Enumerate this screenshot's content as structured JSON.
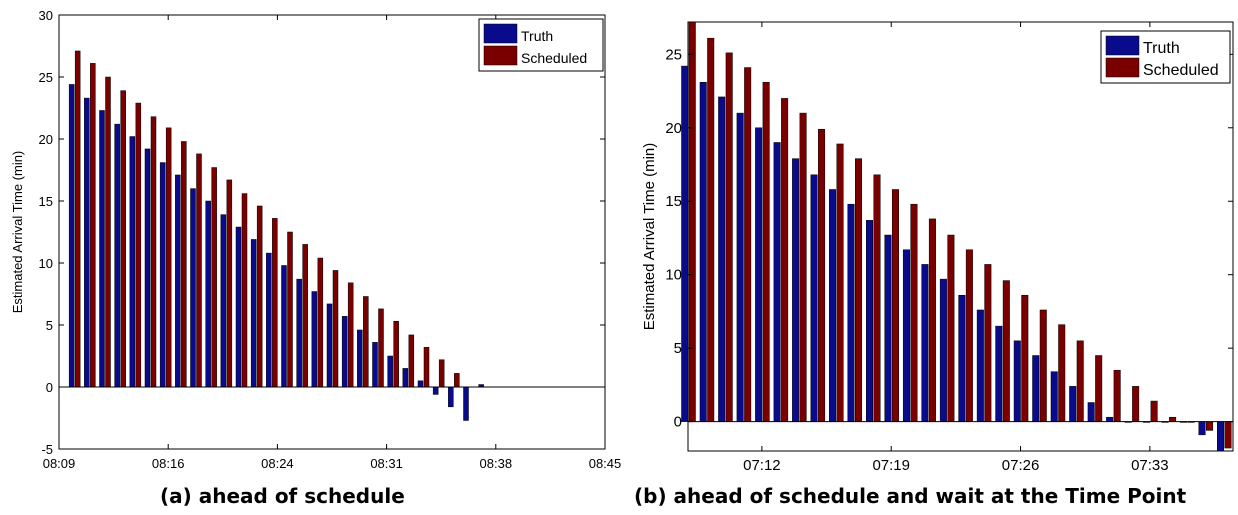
{
  "figure": {
    "captions": {
      "a": "(a) ahead of schedule",
      "b": "(b) ahead of schedule and wait at the Time Point"
    },
    "colors": {
      "truth": "#0a0a8c",
      "scheduled": "#7a0000"
    }
  },
  "chart_data": [
    {
      "type": "bar",
      "ylabel": "Estimated Arrival Time (min)",
      "xlabel": "",
      "ylim": [
        -5,
        30
      ],
      "yticks": [
        "-5",
        "0",
        "5",
        "10",
        "15",
        "20",
        "25",
        "30"
      ],
      "xticks": [
        "08:09",
        "08:16",
        "08:24",
        "08:31",
        "08:38",
        "08:45"
      ],
      "xlim_minutes": [
        9,
        45
      ],
      "legend": {
        "position": "top-right",
        "entries": [
          "Truth",
          "Scheduled"
        ]
      },
      "grid": false,
      "x_minutes": [
        10,
        11,
        12,
        13,
        14,
        15,
        16,
        17,
        18,
        19,
        20,
        21,
        22,
        23,
        24,
        25,
        26,
        27,
        28,
        29,
        30,
        31,
        32,
        33,
        34,
        35,
        36,
        37,
        38
      ],
      "series": [
        {
          "name": "Truth",
          "values": [
            24.4,
            23.3,
            22.3,
            21.2,
            20.2,
            19.2,
            18.1,
            17.1,
            16.0,
            15.0,
            13.9,
            12.9,
            11.9,
            10.8,
            9.8,
            8.7,
            7.7,
            6.7,
            5.7,
            4.6,
            3.6,
            2.5,
            1.5,
            0.5,
            -0.6,
            -1.6,
            -2.7,
            0.2,
            null
          ]
        },
        {
          "name": "Scheduled",
          "values": [
            27.1,
            26.1,
            25.0,
            23.9,
            22.9,
            21.8,
            20.9,
            19.8,
            18.8,
            17.7,
            16.7,
            15.6,
            14.6,
            13.6,
            12.5,
            11.5,
            10.4,
            9.4,
            8.4,
            7.3,
            6.3,
            5.3,
            4.2,
            3.2,
            2.2,
            1.1,
            null,
            null,
            null
          ]
        }
      ]
    },
    {
      "type": "bar",
      "ylabel": "Estimated Arrival Time (min)",
      "xlabel": "",
      "ylim": [
        -2,
        27.2
      ],
      "yticks": [
        "0",
        "5",
        "10",
        "15",
        "20",
        "25"
      ],
      "xticks": [
        "07:12",
        "07:19",
        "07:26",
        "07:33"
      ],
      "xtick_minutes": [
        12,
        19,
        26,
        33
      ],
      "xlim_minutes": [
        8,
        37.5
      ],
      "legend": {
        "position": "top-right",
        "entries": [
          "Truth",
          "Scheduled"
        ]
      },
      "grid": false,
      "x_minutes": [
        8,
        9,
        10,
        11,
        12,
        13,
        14,
        15,
        16,
        17,
        18,
        19,
        20,
        21,
        22,
        23,
        24,
        25,
        26,
        27,
        28,
        29,
        30,
        31,
        32,
        33,
        34,
        35,
        36,
        37
      ],
      "series": [
        {
          "name": "Truth",
          "values": [
            24.2,
            23.1,
            22.1,
            21.0,
            20.0,
            19.0,
            17.9,
            16.8,
            15.8,
            14.8,
            13.7,
            12.7,
            11.7,
            10.7,
            9.7,
            8.6,
            7.6,
            6.5,
            5.5,
            4.5,
            3.4,
            2.4,
            1.3,
            0.3,
            0.0,
            0.0,
            0.0,
            0.0,
            -0.9,
            -2.0
          ]
        },
        {
          "name": "Scheduled",
          "values": [
            27.2,
            26.1,
            25.1,
            24.1,
            23.1,
            22.0,
            21.0,
            19.9,
            18.9,
            17.9,
            16.8,
            15.8,
            14.8,
            13.8,
            12.7,
            11.7,
            10.7,
            9.6,
            8.6,
            7.6,
            6.6,
            5.5,
            4.5,
            3.5,
            2.4,
            1.4,
            0.3,
            0.0,
            -0.6,
            -1.8
          ]
        }
      ]
    }
  ]
}
